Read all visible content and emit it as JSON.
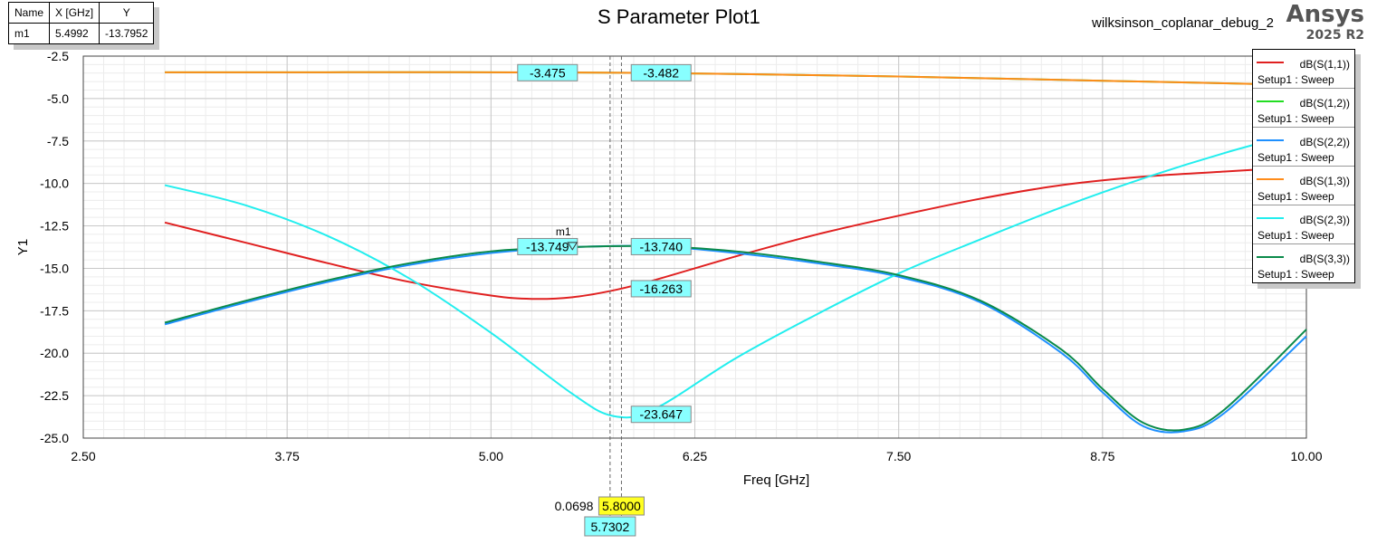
{
  "header": {
    "title": "S Parameter Plot1",
    "project": "wilksinson_coplanar_debug_2",
    "brand": "Ansys",
    "version": "2025 R2"
  },
  "marker_table": {
    "headers": [
      "Name",
      "X [GHz]",
      "Y"
    ],
    "rows": [
      [
        "m1",
        "5.4992",
        "-13.7952"
      ]
    ]
  },
  "legend": [
    {
      "name": "dB(S(1,1))",
      "setup": "Setup1 : Sweep",
      "color": "#e02020"
    },
    {
      "name": "dB(S(1,2))",
      "setup": "Setup1 : Sweep",
      "color": "#22dd22"
    },
    {
      "name": "dB(S(2,2))",
      "setup": "Setup1 : Sweep",
      "color": "#1e90ff"
    },
    {
      "name": "dB(S(1,3))",
      "setup": "Setup1 : Sweep",
      "color": "#ff8c1a"
    },
    {
      "name": "dB(S(2,3))",
      "setup": "Setup1 : Sweep",
      "color": "#22eeee"
    },
    {
      "name": "dB(S(3,3))",
      "setup": "Setup1 : Sweep",
      "color": "#0a8a4a"
    }
  ],
  "chart_data": {
    "type": "line",
    "title": "S Parameter Plot1",
    "xlabel": "Freq [GHz]",
    "ylabel": "Y1",
    "xlim": [
      2.5,
      10.0
    ],
    "ylim": [
      -25.0,
      -2.5
    ],
    "xticks": [
      "2.50",
      "3.75",
      "5.00",
      "6.25",
      "7.50",
      "8.75",
      "10.00"
    ],
    "yticks": [
      "-2.5",
      "-5.0",
      "-7.5",
      "-10.0",
      "-12.5",
      "-15.0",
      "-17.5",
      "-20.0",
      "-22.5",
      "-25.0"
    ],
    "grid": true,
    "legend_position": "top-right",
    "series": [
      {
        "name": "dB(S(1,1))",
        "color": "#e02020",
        "x": [
          3.0,
          3.5,
          4.0,
          4.5,
          5.0,
          5.25,
          5.5,
          5.75,
          6.0,
          6.5,
          7.0,
          7.5,
          8.0,
          8.5,
          9.0,
          9.5,
          10.0
        ],
        "y": [
          -12.3,
          -13.5,
          -14.7,
          -15.8,
          -16.6,
          -16.8,
          -16.7,
          -16.3,
          -15.7,
          -14.3,
          -13.0,
          -11.9,
          -10.9,
          -10.1,
          -9.6,
          -9.3,
          -9.0
        ]
      },
      {
        "name": "dB(S(1,2))",
        "color": "#22dd22",
        "x": [
          3.0,
          4.0,
          5.0,
          5.8,
          6.5,
          7.5,
          8.5,
          9.5,
          10.0
        ],
        "y": [
          -3.45,
          -3.45,
          -3.45,
          -3.48,
          -3.55,
          -3.7,
          -3.9,
          -4.1,
          -4.2
        ]
      },
      {
        "name": "dB(S(2,2))",
        "color": "#1e90ff",
        "x": [
          3.0,
          3.5,
          4.0,
          4.5,
          5.0,
          5.5,
          6.0,
          6.5,
          7.0,
          7.5,
          8.0,
          8.5,
          8.75,
          9.0,
          9.25,
          9.5,
          10.0
        ],
        "y": [
          -18.3,
          -17.0,
          -15.8,
          -14.8,
          -14.1,
          -13.75,
          -13.7,
          -14.1,
          -14.7,
          -15.5,
          -17.0,
          -20.0,
          -22.3,
          -24.3,
          -24.6,
          -23.5,
          -19.0
        ]
      },
      {
        "name": "dB(S(1,3))",
        "color": "#ff8c1a",
        "x": [
          3.0,
          4.0,
          5.0,
          5.8,
          6.5,
          7.5,
          8.5,
          9.5,
          10.0
        ],
        "y": [
          -3.45,
          -3.45,
          -3.45,
          -3.48,
          -3.55,
          -3.7,
          -3.9,
          -4.1,
          -4.2
        ]
      },
      {
        "name": "dB(S(2,3))",
        "color": "#22eeee",
        "x": [
          3.0,
          3.5,
          4.0,
          4.5,
          5.0,
          5.5,
          5.75,
          6.0,
          6.5,
          7.0,
          7.5,
          8.0,
          8.5,
          9.0,
          9.5,
          10.0
        ],
        "y": [
          -10.1,
          -11.3,
          -13.1,
          -15.6,
          -18.8,
          -22.4,
          -23.7,
          -23.3,
          -20.3,
          -17.7,
          -15.3,
          -13.3,
          -11.4,
          -9.7,
          -8.2,
          -6.9
        ]
      },
      {
        "name": "dB(S(3,3))",
        "color": "#0a8a4a",
        "x": [
          3.0,
          3.5,
          4.0,
          4.5,
          5.0,
          5.5,
          6.0,
          6.5,
          7.0,
          7.5,
          8.0,
          8.5,
          8.75,
          9.0,
          9.25,
          9.5,
          10.0
        ],
        "y": [
          -18.2,
          -16.9,
          -15.7,
          -14.7,
          -14.0,
          -13.75,
          -13.7,
          -14.0,
          -14.6,
          -15.4,
          -16.9,
          -19.8,
          -22.1,
          -24.1,
          -24.5,
          -23.3,
          -18.6
        ]
      }
    ],
    "cursors": [
      {
        "x_label": "5.8000",
        "x": 5.8,
        "label_bg": "#ffff22"
      },
      {
        "x_label": "5.7302",
        "x": 5.7302,
        "label_bg": "#88ffff"
      }
    ],
    "cursor_delta": "0.0698",
    "cursor_values": [
      {
        "text": "-3.475",
        "x": 5.53,
        "y": -3.475,
        "bg": "#88ffff",
        "side": "left"
      },
      {
        "text": "-3.482",
        "x": 5.86,
        "y": -3.48,
        "bg": "#88ffff",
        "side": "right"
      },
      {
        "text": "-13.749",
        "x": 5.53,
        "y": -13.72,
        "bg": "#88ffff",
        "side": "left"
      },
      {
        "text": "-13.740",
        "x": 5.86,
        "y": -13.72,
        "bg": "#88ffff",
        "side": "right"
      },
      {
        "text": "-16.263",
        "x": 5.86,
        "y": -16.2,
        "bg": "#88ffff",
        "side": "right"
      },
      {
        "text": "-23.647",
        "x": 5.86,
        "y": -23.6,
        "bg": "#88ffff",
        "side": "right"
      }
    ],
    "marker": {
      "name": "m1",
      "x": 5.4992,
      "y": -13.7952
    }
  }
}
